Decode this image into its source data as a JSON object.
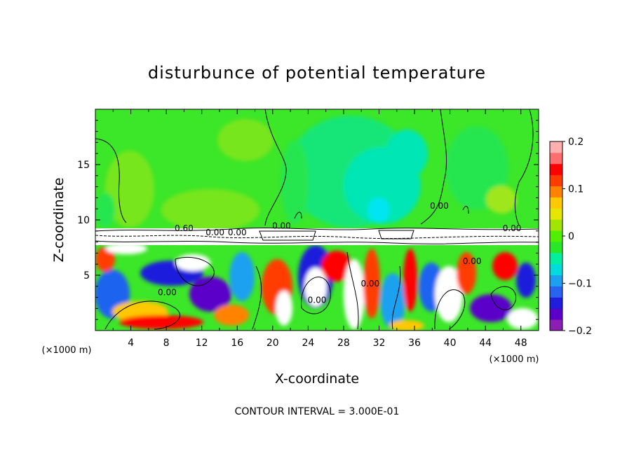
{
  "chart_data": {
    "type": "heatmap",
    "title": "disturbunce of potential temperature",
    "xlabel": "X-coordinate",
    "ylabel": "Z-coordinate",
    "x_unit": "(×1000 m)",
    "y_unit": "(×1000 m)",
    "xlim": [
      0,
      50
    ],
    "ylim": [
      0,
      20
    ],
    "x_ticks": [
      4,
      8,
      12,
      16,
      20,
      24,
      28,
      32,
      36,
      40,
      44,
      48
    ],
    "x_tick_labels": [
      "4",
      "8",
      "12",
      "16",
      "20",
      "24",
      "28",
      "32",
      "36",
      "40",
      "44",
      "48"
    ],
    "y_ticks": [
      5,
      10,
      15
    ],
    "y_tick_labels": [
      "5",
      "10",
      "15"
    ],
    "colorbar": {
      "min": -0.2,
      "max": 0.2,
      "ticks": [
        0.2,
        0.1,
        0,
        -0.1,
        -0.2
      ],
      "tick_labels": [
        "0.2",
        "0.1",
        "0",
        "−0.1",
        "−0.2"
      ],
      "colors": [
        "#8c1eb4",
        "#5a00c8",
        "#1e1edc",
        "#2864f0",
        "#1ea0f0",
        "#00dcdc",
        "#00f0a0",
        "#28e628",
        "#50f000",
        "#a0e600",
        "#e6e600",
        "#ffc800",
        "#ff8200",
        "#ff3c00",
        "#ff0000",
        "#ff6e6e",
        "#ffafaf"
      ]
    },
    "contour_labels": [
      {
        "text": "0.00",
        "x": 8.1,
        "y": 3.2
      },
      {
        "text": "0.60",
        "x": 10.0,
        "y": 9.0
      },
      {
        "text": "0.00",
        "x": 13.5,
        "y": 8.6
      },
      {
        "text": "0.00",
        "x": 16.0,
        "y": 8.6
      },
      {
        "text": "0.00",
        "x": 21.0,
        "y": 9.2
      },
      {
        "text": "0.00",
        "x": 25.0,
        "y": 2.5
      },
      {
        "text": "0.00",
        "x": 31.0,
        "y": 4.0
      },
      {
        "text": "0.00",
        "x": 38.8,
        "y": 11.0
      },
      {
        "text": "0.00",
        "x": 42.5,
        "y": 6.0
      },
      {
        "text": "0.00",
        "x": 47.0,
        "y": 9.0
      }
    ],
    "contour_interval": "CONTOUR INTERVAL = 3.000E-01",
    "grid": false,
    "legend": "colorbar-right"
  }
}
